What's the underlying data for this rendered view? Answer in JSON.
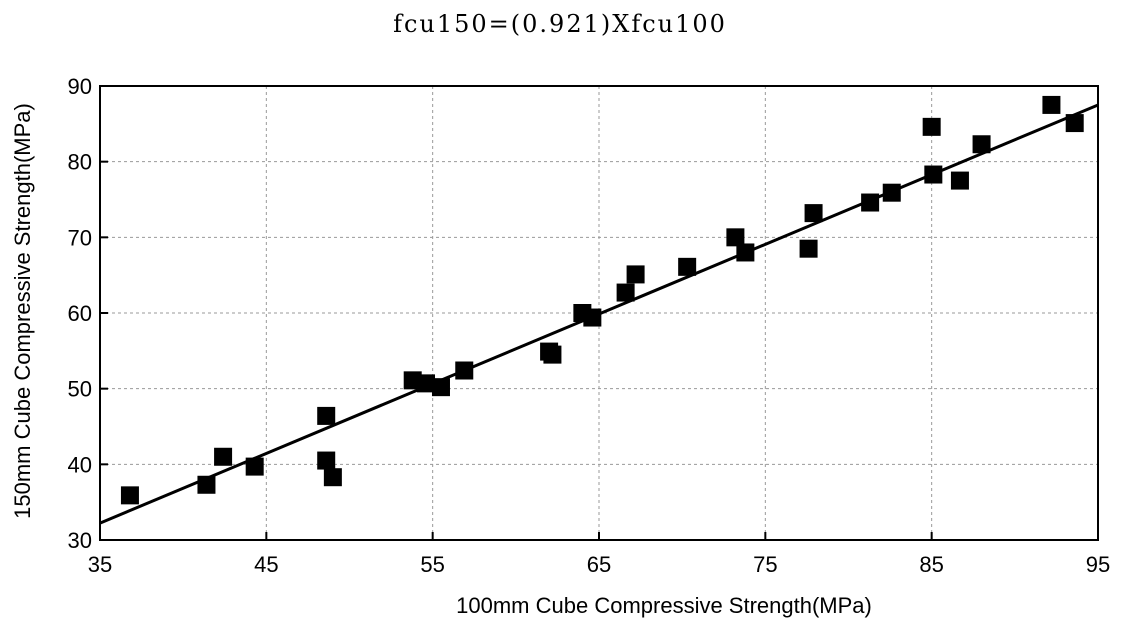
{
  "chart_data": {
    "type": "scatter",
    "title": "fcu150=(0.921)Xfcu100",
    "xlabel": "100mm Cube Compressive Strength(MPa)",
    "ylabel": "150mm Cube Compressive Strength(MPa)",
    "xlim": [
      35,
      95
    ],
    "ylim": [
      30,
      90
    ],
    "xticks": [
      35,
      45,
      55,
      65,
      75,
      85,
      95
    ],
    "yticks": [
      30,
      40,
      50,
      60,
      70,
      80,
      90
    ],
    "xticklabels": [
      "35",
      "45",
      "55",
      "65",
      "75",
      "85",
      "95"
    ],
    "yticklabels": [
      "30",
      "40",
      "50",
      "60",
      "70",
      "80",
      "90"
    ],
    "grid": true,
    "fit_line": {
      "slope": 0.921,
      "intercept": 0
    },
    "points": [
      {
        "x": 36.8,
        "y": 35.9
      },
      {
        "x": 41.4,
        "y": 37.3
      },
      {
        "x": 42.4,
        "y": 41.0
      },
      {
        "x": 44.3,
        "y": 39.7
      },
      {
        "x": 48.6,
        "y": 46.4
      },
      {
        "x": 48.6,
        "y": 40.5
      },
      {
        "x": 49.0,
        "y": 38.3
      },
      {
        "x": 53.8,
        "y": 51.1
      },
      {
        "x": 54.6,
        "y": 50.7
      },
      {
        "x": 55.5,
        "y": 50.2
      },
      {
        "x": 56.9,
        "y": 52.4
      },
      {
        "x": 62.0,
        "y": 54.9
      },
      {
        "x": 62.2,
        "y": 54.5
      },
      {
        "x": 64.0,
        "y": 60.0
      },
      {
        "x": 64.6,
        "y": 59.4
      },
      {
        "x": 66.6,
        "y": 62.7
      },
      {
        "x": 67.2,
        "y": 65.1
      },
      {
        "x": 70.3,
        "y": 66.1
      },
      {
        "x": 73.2,
        "y": 70.0
      },
      {
        "x": 73.8,
        "y": 68.0
      },
      {
        "x": 77.6,
        "y": 68.5
      },
      {
        "x": 77.9,
        "y": 73.2
      },
      {
        "x": 81.3,
        "y": 74.6
      },
      {
        "x": 82.6,
        "y": 75.9
      },
      {
        "x": 85.0,
        "y": 84.6
      },
      {
        "x": 85.1,
        "y": 78.3
      },
      {
        "x": 86.7,
        "y": 77.5
      },
      {
        "x": 88.0,
        "y": 82.3
      },
      {
        "x": 92.2,
        "y": 87.5
      },
      {
        "x": 93.6,
        "y": 85.1
      }
    ]
  }
}
